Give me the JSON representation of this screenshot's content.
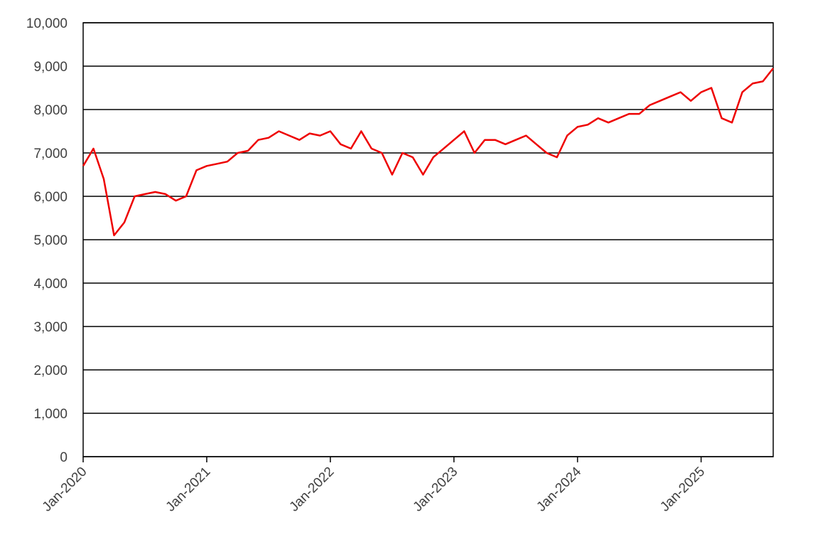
{
  "chart_data": {
    "type": "line",
    "x": [
      "Jan-2020",
      "Feb-2020",
      "Mar-2020",
      "Apr-2020",
      "May-2020",
      "Jun-2020",
      "Jul-2020",
      "Aug-2020",
      "Sep-2020",
      "Oct-2020",
      "Nov-2020",
      "Dec-2020",
      "Jan-2021",
      "Feb-2021",
      "Mar-2021",
      "Apr-2021",
      "May-2021",
      "Jun-2021",
      "Jul-2021",
      "Aug-2021",
      "Sep-2021",
      "Oct-2021",
      "Nov-2021",
      "Dec-2021",
      "Jan-2022",
      "Feb-2022",
      "Mar-2022",
      "Apr-2022",
      "May-2022",
      "Jun-2022",
      "Jul-2022",
      "Aug-2022",
      "Sep-2022",
      "Oct-2022",
      "Nov-2022",
      "Dec-2022",
      "Jan-2023",
      "Feb-2023",
      "Mar-2023",
      "Apr-2023",
      "May-2023",
      "Jun-2023",
      "Jul-2023",
      "Aug-2023",
      "Sep-2023",
      "Oct-2023",
      "Nov-2023",
      "Dec-2023",
      "Jan-2024",
      "Feb-2024",
      "Mar-2024",
      "Apr-2024",
      "May-2024",
      "Jun-2024",
      "Jul-2024",
      "Aug-2024",
      "Sep-2024",
      "Oct-2024",
      "Nov-2024",
      "Dec-2024",
      "Jan-2025",
      "Feb-2025",
      "Mar-2025",
      "Apr-2025",
      "May-2025",
      "Jun-2025",
      "Jul-2025",
      "Aug-2025"
    ],
    "series": [
      {
        "color": "#ee0000",
        "values": [
          6700,
          7100,
          6400,
          5100,
          5400,
          6000,
          6050,
          6100,
          6050,
          5900,
          6000,
          6600,
          6700,
          6750,
          6800,
          7000,
          7050,
          7300,
          7350,
          7500,
          7400,
          7300,
          7450,
          7400,
          7500,
          7200,
          7100,
          7500,
          7100,
          7000,
          6500,
          7000,
          6900,
          6500,
          6900,
          7100,
          7300,
          7500,
          7000,
          7300,
          7300,
          7200,
          7300,
          7400,
          7200,
          7000,
          6900,
          7400,
          7600,
          7650,
          7800,
          7700,
          7800,
          7900,
          7900,
          8100,
          8200,
          8300,
          8400,
          8200,
          8400,
          8500,
          7800,
          7700,
          8400,
          8600,
          8650,
          8950
        ]
      }
    ],
    "xlim": [
      "Jan-2020",
      "Aug-2025"
    ],
    "xticks": [
      "Jan-2020",
      "Jan-2021",
      "Jan-2022",
      "Jan-2023",
      "Jan-2024",
      "Jan-2025"
    ],
    "ylim": [
      0,
      10000
    ],
    "yticks": [
      0,
      {
        "value": 1000,
        "label": "1,000"
      },
      {
        "value": 2000,
        "label": "2,000"
      },
      {
        "value": 3000,
        "label": "3,000"
      },
      {
        "value": 4000,
        "label": "4,000"
      },
      {
        "value": 5000,
        "label": "5,000"
      },
      {
        "value": 6000,
        "label": "6,000"
      },
      {
        "value": 7000,
        "label": "7,000"
      },
      {
        "value": 8000,
        "label": "8,000"
      },
      {
        "value": 9000,
        "label": "9,000"
      },
      {
        "value": 10000,
        "label": "10,000"
      }
    ],
    "grid": true
  }
}
